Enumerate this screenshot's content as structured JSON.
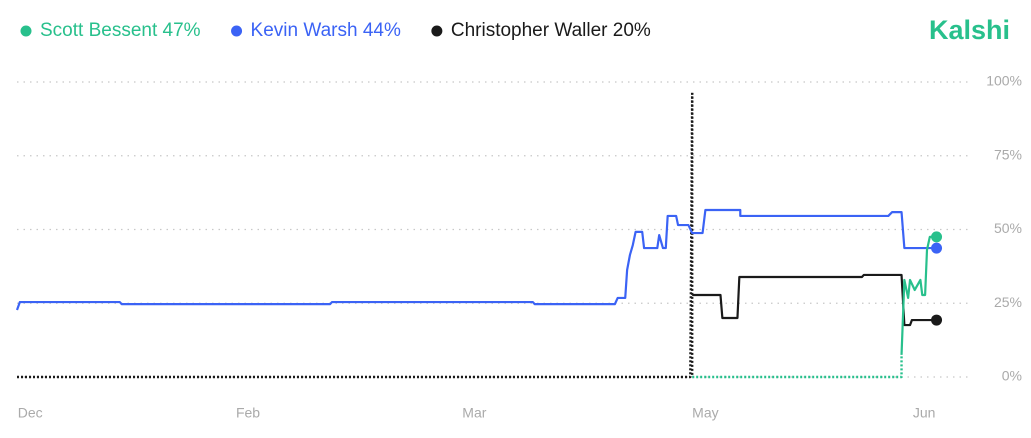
{
  "brand": "Kalshi",
  "chart_data": {
    "type": "line",
    "xlim": [
      0,
      100
    ],
    "xticks": [
      {
        "value": 1.4,
        "label": "Dec"
      },
      {
        "value": 24.5,
        "label": "Feb"
      },
      {
        "value": 48.5,
        "label": "Mar"
      },
      {
        "value": 73,
        "label": "May"
      },
      {
        "value": 96.2,
        "label": "Jun"
      }
    ],
    "ylim": [
      0,
      100
    ],
    "yticks": [
      {
        "value": 0,
        "label": "0%"
      },
      {
        "value": 25,
        "label": "25%"
      },
      {
        "value": 50,
        "label": "50%"
      },
      {
        "value": 75,
        "label": "75%"
      },
      {
        "value": 100,
        "label": "100%"
      }
    ],
    "grid": true,
    "series": [
      {
        "name": "Scott Bessent",
        "color": "#28c08c",
        "current": {
          "value": 47,
          "label": "47%"
        },
        "x": [
          71.6,
          93.8,
          93.8,
          94.1,
          94.5,
          94.7,
          95.2,
          95.8,
          96.0,
          96.3,
          96.5,
          96.8,
          97.3
        ],
        "values": [
          0,
          0,
          7.5,
          32.9,
          26.8,
          32.9,
          29.5,
          32.9,
          27.8,
          27.8,
          43.1,
          47.5,
          47.5
        ]
      },
      {
        "name": "Kevin Warsh",
        "color": "#3b63f5",
        "current": {
          "value": 44,
          "label": "44%"
        },
        "x": [
          0,
          0.3,
          10.9,
          11.1,
          33.2,
          33.4,
          54.7,
          54.9,
          63.4,
          63.7,
          64.5,
          64.7,
          65.0,
          65.3,
          65.6,
          66.3,
          66.5,
          67.9,
          68.1,
          68.5,
          68.8,
          69.0,
          69.9,
          70.1,
          71.2,
          71.6,
          72.7,
          73.0,
          76.7,
          76.7,
          92.4,
          92.8,
          93.8,
          94.1,
          97.3
        ],
        "values": [
          22.7,
          25.4,
          25.4,
          24.7,
          24.7,
          25.4,
          25.4,
          24.7,
          24.7,
          26.8,
          26.8,
          36.3,
          41.4,
          44.7,
          49.2,
          49.2,
          43.7,
          43.7,
          48.1,
          43.7,
          43.7,
          54.6,
          54.6,
          51.5,
          51.5,
          48.8,
          48.8,
          56.6,
          56.6,
          54.6,
          54.6,
          55.9,
          55.9,
          43.7,
          43.7
        ]
      },
      {
        "name": "Christopher Waller",
        "color": "#1a1a1a",
        "current": {
          "value": 20,
          "label": "20%"
        },
        "x": [
          0,
          71.4,
          71.6,
          71.6,
          74.6,
          74.8,
          76.4,
          76.6,
          89.6,
          89.8,
          93.8,
          94.1,
          94.7,
          94.9,
          97.3
        ],
        "values": [
          0,
          0,
          96.3,
          27.8,
          27.8,
          20.0,
          20.0,
          33.9,
          33.9,
          34.6,
          34.6,
          17.6,
          17.6,
          19.3,
          19.3
        ]
      }
    ]
  }
}
